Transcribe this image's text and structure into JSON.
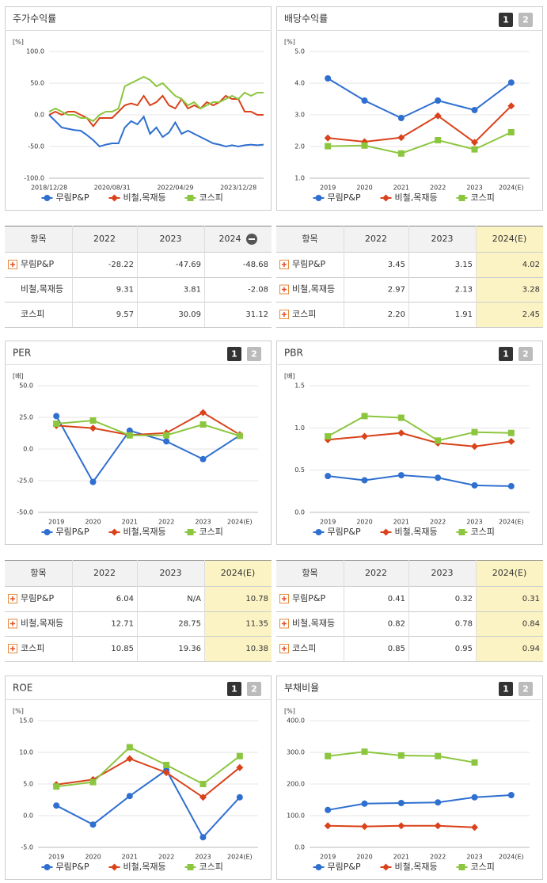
{
  "chart_data": [
    {
      "type": "line",
      "title": "주가수익률",
      "unit": "[%]",
      "categories": [
        "2018/12/28",
        null,
        null,
        null,
        null,
        null,
        null,
        null,
        null,
        null,
        "2020/08/31",
        null,
        null,
        null,
        null,
        null,
        null,
        null,
        null,
        null,
        "2022/04/29",
        null,
        null,
        null,
        null,
        null,
        null,
        null,
        null,
        null,
        "2023/12/28",
        null,
        null,
        null,
        null
      ],
      "ylim": [
        -100,
        100
      ],
      "yticks": [
        {
          "value": -100,
          "label": "-100.0"
        },
        {
          "value": -50,
          "label": "-50.0"
        },
        {
          "value": 0,
          "label": "0.0"
        },
        {
          "value": 50,
          "label": "50.0"
        },
        {
          "value": 100,
          "label": "100.0"
        }
      ],
      "grid": true,
      "markers": false,
      "series": [
        {
          "name": "무림P&P",
          "color": "#2f6fd0",
          "marker": "circle",
          "values": [
            0,
            -10,
            -20,
            -22,
            -24,
            -25,
            -32,
            -40,
            -50,
            -47,
            -45,
            -45,
            -20,
            -10,
            -15,
            -3,
            -30,
            -20,
            -35,
            -28,
            -12,
            -30,
            -25,
            -30,
            -35,
            -40,
            -45,
            -47,
            -50,
            -48,
            -50,
            -48,
            -47,
            -48,
            -47
          ]
        },
        {
          "name": "비철,목재등",
          "color": "#d9421a",
          "marker": "diamond",
          "values": [
            0,
            5,
            0,
            5,
            5,
            0,
            -5,
            -18,
            -5,
            -5,
            -5,
            5,
            15,
            18,
            15,
            30,
            15,
            20,
            30,
            15,
            10,
            25,
            10,
            15,
            10,
            20,
            15,
            20,
            30,
            25,
            25,
            5,
            5,
            0,
            0
          ]
        },
        {
          "name": "코스피",
          "color": "#8cc63f",
          "marker": "square",
          "values": [
            5,
            10,
            5,
            0,
            0,
            -5,
            -5,
            -10,
            0,
            5,
            5,
            10,
            45,
            50,
            55,
            60,
            55,
            45,
            50,
            40,
            30,
            25,
            15,
            20,
            10,
            15,
            20,
            20,
            25,
            30,
            25,
            35,
            30,
            35,
            35
          ]
        }
      ]
    },
    {
      "type": "line",
      "title": "배당수익률",
      "unit": "[%]",
      "buttons": [
        "1",
        "2"
      ],
      "categories": [
        "2019",
        "2020",
        "2021",
        "2022",
        "2023",
        "2024(E)"
      ],
      "ylim": [
        1,
        5
      ],
      "yticks": [
        {
          "value": 1,
          "label": "1.0"
        },
        {
          "value": 2,
          "label": "2.0"
        },
        {
          "value": 3,
          "label": "3.0"
        },
        {
          "value": 4,
          "label": "4.0"
        },
        {
          "value": 5,
          "label": "5.0"
        }
      ],
      "grid": true,
      "markers": true,
      "series": [
        {
          "name": "무림P&P",
          "color": "#2f6fd0",
          "marker": "circle",
          "values": [
            4.15,
            3.45,
            2.9,
            3.45,
            3.15,
            4.02
          ]
        },
        {
          "name": "비철,목재등",
          "color": "#d9421a",
          "marker": "diamond",
          "values": [
            2.27,
            2.15,
            2.28,
            2.97,
            2.13,
            3.28
          ]
        },
        {
          "name": "코스피",
          "color": "#8cc63f",
          "marker": "square",
          "values": [
            2.01,
            2.03,
            1.78,
            2.2,
            1.91,
            2.45
          ]
        }
      ]
    },
    {
      "type": "line",
      "title": "PER",
      "unit": "[배]",
      "buttons": [
        "1",
        "2"
      ],
      "categories": [
        "2019",
        "2020",
        "2021",
        "2022",
        "2023",
        "2024(E)"
      ],
      "ylim": [
        -50,
        50
      ],
      "yticks": [
        {
          "value": -50,
          "label": "-50.0"
        },
        {
          "value": -25,
          "label": "-25.0"
        },
        {
          "value": 0,
          "label": "0.0"
        },
        {
          "value": 25,
          "label": "25.0"
        },
        {
          "value": 50,
          "label": "50.0"
        }
      ],
      "grid": true,
      "markers": true,
      "series": [
        {
          "name": "무림P&P",
          "color": "#2f6fd0",
          "marker": "circle",
          "values": [
            26,
            -26,
            14.5,
            6.04,
            -8,
            10.78
          ]
        },
        {
          "name": "비철,목재등",
          "color": "#d9421a",
          "marker": "diamond",
          "values": [
            18.5,
            16.5,
            11,
            12.71,
            28.75,
            11.35
          ]
        },
        {
          "name": "코스피",
          "color": "#8cc63f",
          "marker": "square",
          "values": [
            20,
            22.5,
            10.8,
            10.85,
            19.36,
            10.38
          ]
        }
      ]
    },
    {
      "type": "line",
      "title": "PBR",
      "unit": "[배]",
      "buttons": [
        "1",
        "2"
      ],
      "categories": [
        "2019",
        "2020",
        "2021",
        "2022",
        "2023",
        "2024(E)"
      ],
      "ylim": [
        0,
        1.5
      ],
      "yticks": [
        {
          "value": 0,
          "label": "0.0"
        },
        {
          "value": 0.5,
          "label": "0.5"
        },
        {
          "value": 1,
          "label": "1.0"
        },
        {
          "value": 1.5,
          "label": "1.5"
        }
      ],
      "grid": true,
      "markers": true,
      "series": [
        {
          "name": "무림P&P",
          "color": "#2f6fd0",
          "marker": "circle",
          "values": [
            0.43,
            0.38,
            0.44,
            0.41,
            0.32,
            0.31
          ]
        },
        {
          "name": "비철,목재등",
          "color": "#d9421a",
          "marker": "diamond",
          "values": [
            0.86,
            0.9,
            0.94,
            0.82,
            0.78,
            0.84
          ]
        },
        {
          "name": "코스피",
          "color": "#8cc63f",
          "marker": "square",
          "values": [
            0.9,
            1.14,
            1.12,
            0.85,
            0.95,
            0.94
          ]
        }
      ]
    },
    {
      "type": "line",
      "title": "ROE",
      "unit": "[%]",
      "buttons": [
        "1",
        "2"
      ],
      "categories": [
        "2019",
        "2020",
        "2021",
        "2022",
        "2023",
        "2024(E)"
      ],
      "ylim": [
        -5,
        15
      ],
      "yticks": [
        {
          "value": -5,
          "label": "-5.0"
        },
        {
          "value": 0,
          "label": "0.0"
        },
        {
          "value": 5,
          "label": "5.0"
        },
        {
          "value": 10,
          "label": "10.0"
        },
        {
          "value": 15,
          "label": "15.0"
        }
      ],
      "grid": true,
      "markers": true,
      "series": [
        {
          "name": "무림P&P",
          "color": "#2f6fd0",
          "marker": "circle",
          "values": [
            1.6,
            -1.4,
            3.1,
            7.2,
            -3.4,
            2.9
          ]
        },
        {
          "name": "비철,목재등",
          "color": "#d9421a",
          "marker": "diamond",
          "values": [
            4.9,
            5.7,
            9.0,
            6.8,
            2.9,
            7.6
          ]
        },
        {
          "name": "코스피",
          "color": "#8cc63f",
          "marker": "square",
          "values": [
            4.6,
            5.3,
            10.8,
            8.0,
            5.0,
            9.4
          ]
        }
      ]
    },
    {
      "type": "line",
      "title": "부채비율",
      "unit": "[%]",
      "buttons": [
        "1",
        "2"
      ],
      "categories": [
        "2019",
        "2020",
        "2021",
        "2022",
        "2023",
        "2024(E)"
      ],
      "ylim": [
        0,
        400
      ],
      "yticks": [
        {
          "value": 0,
          "label": "0.0"
        },
        {
          "value": 100,
          "label": "100.0"
        },
        {
          "value": 200,
          "label": "200.0"
        },
        {
          "value": 300,
          "label": "300.0"
        },
        {
          "value": 400,
          "label": "400.0"
        }
      ],
      "grid": true,
      "markers": true,
      "series": [
        {
          "name": "무림P&P",
          "color": "#2f6fd0",
          "marker": "circle",
          "values": [
            118,
            138,
            140,
            142,
            158,
            165
          ]
        },
        {
          "name": "비철,목재등",
          "color": "#d9421a",
          "marker": "diamond",
          "values": [
            68,
            66,
            68,
            68,
            63,
            null
          ]
        },
        {
          "name": "코스피",
          "color": "#8cc63f",
          "marker": "square",
          "values": [
            288,
            302,
            290,
            288,
            268,
            null
          ]
        }
      ]
    }
  ],
  "tables": [
    {
      "header": [
        "항목",
        "2022",
        "2023",
        "2024"
      ],
      "header_icon": "minus",
      "highlight_last": false,
      "expandable": [
        true,
        false,
        false
      ],
      "rows": [
        [
          "무림P&P",
          "-28.22",
          "-47.69",
          "-48.68"
        ],
        [
          "비철,목재등",
          "9.31",
          "3.81",
          "-2.08"
        ],
        [
          "코스피",
          "9.57",
          "30.09",
          "31.12"
        ]
      ]
    },
    {
      "header": [
        "항목",
        "2022",
        "2023",
        "2024(E)"
      ],
      "highlight_last": true,
      "expandable": [
        true,
        true,
        true
      ],
      "rows": [
        [
          "무림P&P",
          "3.45",
          "3.15",
          "4.02"
        ],
        [
          "비철,목재등",
          "2.97",
          "2.13",
          "3.28"
        ],
        [
          "코스피",
          "2.20",
          "1.91",
          "2.45"
        ]
      ]
    },
    {
      "header": [
        "항목",
        "2022",
        "2023",
        "2024(E)"
      ],
      "highlight_last": true,
      "expandable": [
        true,
        true,
        true
      ],
      "rows": [
        [
          "무림P&P",
          "6.04",
          "N/A",
          "10.78"
        ],
        [
          "비철,목재등",
          "12.71",
          "28.75",
          "11.35"
        ],
        [
          "코스피",
          "10.85",
          "19.36",
          "10.38"
        ]
      ]
    },
    {
      "header": [
        "항목",
        "2022",
        "2023",
        "2024(E)"
      ],
      "highlight_last": true,
      "expandable": [
        true,
        true,
        true
      ],
      "rows": [
        [
          "무림P&P",
          "0.41",
          "0.32",
          "0.31"
        ],
        [
          "비철,목재등",
          "0.82",
          "0.78",
          "0.84"
        ],
        [
          "코스피",
          "0.85",
          "0.95",
          "0.94"
        ]
      ]
    }
  ]
}
